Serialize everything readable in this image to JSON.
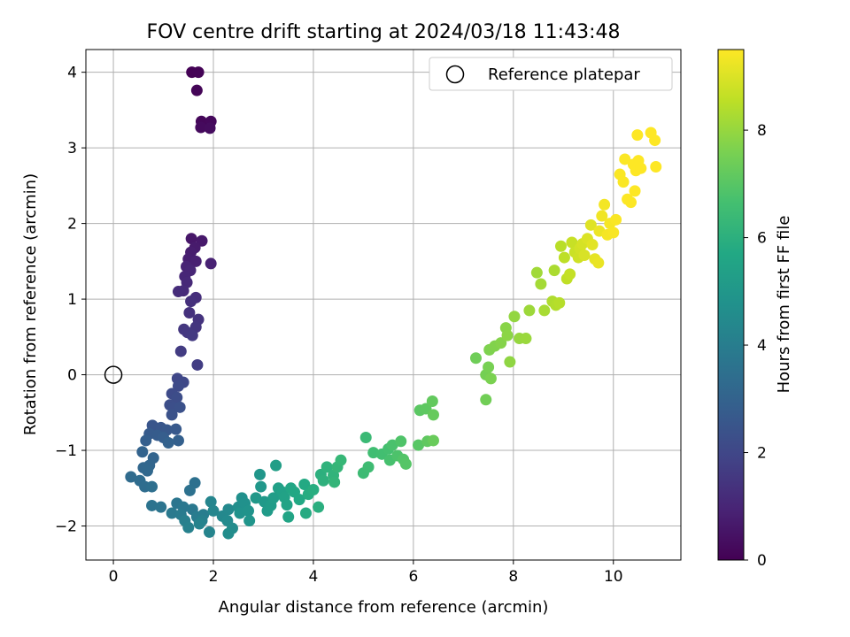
{
  "chart_data": {
    "type": "scatter",
    "title": "FOV centre drift starting at 2024/03/18 11:43:48",
    "xlabel": "Angular distance from reference (arcmin)",
    "ylabel": "Rotation from reference (arcmin)",
    "colorbar_label": "Hours from first FF file",
    "xlim": [
      -0.55,
      11.35
    ],
    "ylim": [
      -2.45,
      4.3
    ],
    "clim": [
      0,
      9.5
    ],
    "colormap": "viridis",
    "grid": true,
    "legend": {
      "position": "top-right",
      "label": "Reference platepar"
    },
    "x_ticks": [
      0,
      2,
      4,
      6,
      8,
      10
    ],
    "y_ticks": [
      -2,
      -1,
      0,
      1,
      2,
      3,
      4
    ],
    "y_tick_labels": [
      "−2",
      "−1",
      "0",
      "1",
      "2",
      "3",
      "4"
    ],
    "colorbar_ticks": [
      0,
      2,
      4,
      6,
      8
    ],
    "reference": {
      "x": 0,
      "y": 0
    },
    "points": [
      [
        1.57,
        4.0,
        0.02
      ],
      [
        1.7,
        4.0,
        0.05
      ],
      [
        1.67,
        3.76,
        0.1
      ],
      [
        1.76,
        3.35,
        0.15
      ],
      [
        1.95,
        3.35,
        0.2
      ],
      [
        1.75,
        3.27,
        0.25
      ],
      [
        1.93,
        3.26,
        0.3
      ],
      [
        1.56,
        1.8,
        0.6
      ],
      [
        1.77,
        1.77,
        0.65
      ],
      [
        1.63,
        1.68,
        0.7
      ],
      [
        1.55,
        1.62,
        0.75
      ],
      [
        1.5,
        1.53,
        0.8
      ],
      [
        1.65,
        1.5,
        0.85
      ],
      [
        1.95,
        1.47,
        0.9
      ],
      [
        1.46,
        1.43,
        0.95
      ],
      [
        1.54,
        1.38,
        1.0
      ],
      [
        1.43,
        1.3,
        1.05
      ],
      [
        1.47,
        1.22,
        1.1
      ],
      [
        1.4,
        1.11,
        1.15
      ],
      [
        1.3,
        1.1,
        1.2
      ],
      [
        1.65,
        1.02,
        1.25
      ],
      [
        1.55,
        0.97,
        1.3
      ],
      [
        1.52,
        0.82,
        1.35
      ],
      [
        1.7,
        0.73,
        1.4
      ],
      [
        1.65,
        0.63,
        1.45
      ],
      [
        1.41,
        0.6,
        1.5
      ],
      [
        1.48,
        0.56,
        1.55
      ],
      [
        1.58,
        0.52,
        1.6
      ],
      [
        1.35,
        0.31,
        1.65
      ],
      [
        1.68,
        0.13,
        1.7
      ],
      [
        1.28,
        -0.05,
        2.0
      ],
      [
        1.4,
        -0.1,
        2.05
      ],
      [
        1.3,
        -0.15,
        2.1
      ],
      [
        1.17,
        -0.25,
        2.15
      ],
      [
        1.27,
        -0.3,
        2.2
      ],
      [
        1.13,
        -0.4,
        2.25
      ],
      [
        1.2,
        -0.43,
        2.3
      ],
      [
        1.33,
        -0.43,
        2.35
      ],
      [
        1.17,
        -0.53,
        2.4
      ],
      [
        0.78,
        -0.67,
        2.5
      ],
      [
        0.95,
        -0.7,
        2.55
      ],
      [
        1.07,
        -0.73,
        2.6
      ],
      [
        1.25,
        -0.72,
        2.65
      ],
      [
        0.72,
        -0.78,
        2.7
      ],
      [
        0.88,
        -0.8,
        2.75
      ],
      [
        1.0,
        -0.83,
        2.8
      ],
      [
        0.65,
        -0.87,
        2.85
      ],
      [
        1.3,
        -0.87,
        2.9
      ],
      [
        1.1,
        -0.9,
        2.95
      ],
      [
        0.58,
        -1.02,
        3.0
      ],
      [
        0.8,
        -1.1,
        3.05
      ],
      [
        0.72,
        -1.2,
        3.1
      ],
      [
        0.6,
        -1.23,
        3.15
      ],
      [
        0.68,
        -1.27,
        3.2
      ],
      [
        0.35,
        -1.35,
        3.3
      ],
      [
        0.53,
        -1.4,
        3.35
      ],
      [
        0.63,
        -1.48,
        3.4
      ],
      [
        0.77,
        -1.48,
        3.45
      ],
      [
        1.63,
        -1.43,
        3.5
      ],
      [
        1.53,
        -1.53,
        3.55
      ],
      [
        0.77,
        -1.73,
        3.6
      ],
      [
        0.95,
        -1.75,
        3.65
      ],
      [
        1.27,
        -1.7,
        3.7
      ],
      [
        1.4,
        -1.75,
        3.75
      ],
      [
        1.58,
        -1.78,
        3.8
      ],
      [
        1.17,
        -1.83,
        3.85
      ],
      [
        1.35,
        -1.85,
        3.9
      ],
      [
        1.67,
        -1.88,
        3.95
      ],
      [
        1.8,
        -1.85,
        4.0
      ],
      [
        1.43,
        -1.93,
        4.05
      ],
      [
        1.77,
        -1.93,
        4.1
      ],
      [
        1.5,
        -2.02,
        4.15
      ],
      [
        1.72,
        -1.97,
        4.2
      ],
      [
        1.92,
        -2.08,
        4.25
      ],
      [
        1.95,
        -1.68,
        4.3
      ],
      [
        2.0,
        -1.8,
        4.35
      ],
      [
        2.18,
        -1.87,
        4.4
      ],
      [
        2.3,
        -1.78,
        4.45
      ],
      [
        2.28,
        -1.93,
        4.5
      ],
      [
        2.38,
        -2.03,
        4.55
      ],
      [
        2.3,
        -2.1,
        4.6
      ],
      [
        2.5,
        -1.75,
        4.65
      ],
      [
        2.57,
        -1.63,
        4.7
      ],
      [
        2.63,
        -1.7,
        4.75
      ],
      [
        2.53,
        -1.83,
        4.8
      ],
      [
        2.7,
        -1.8,
        4.85
      ],
      [
        2.72,
        -1.93,
        4.9
      ],
      [
        2.93,
        -1.32,
        4.95
      ],
      [
        2.95,
        -1.48,
        5.0
      ],
      [
        2.85,
        -1.63,
        5.05
      ],
      [
        3.02,
        -1.68,
        5.1
      ],
      [
        3.08,
        -1.8,
        5.15
      ],
      [
        3.15,
        -1.73,
        5.2
      ],
      [
        3.2,
        -1.63,
        5.25
      ],
      [
        3.25,
        -1.2,
        5.3
      ],
      [
        3.3,
        -1.5,
        5.35
      ],
      [
        3.38,
        -1.55,
        5.4
      ],
      [
        3.42,
        -1.62,
        5.45
      ],
      [
        3.47,
        -1.72,
        5.5
      ],
      [
        3.5,
        -1.88,
        5.55
      ],
      [
        3.55,
        -1.5,
        5.6
      ],
      [
        3.62,
        -1.55,
        5.65
      ],
      [
        3.72,
        -1.65,
        5.7
      ],
      [
        3.82,
        -1.45,
        5.75
      ],
      [
        3.85,
        -1.83,
        5.8
      ],
      [
        3.9,
        -1.58,
        5.85
      ],
      [
        4.0,
        -1.52,
        5.9
      ],
      [
        4.1,
        -1.75,
        5.95
      ],
      [
        4.15,
        -1.32,
        6.0
      ],
      [
        4.2,
        -1.4,
        6.05
      ],
      [
        4.27,
        -1.22,
        6.1
      ],
      [
        4.4,
        -1.33,
        6.15
      ],
      [
        4.42,
        -1.42,
        6.2
      ],
      [
        4.48,
        -1.22,
        6.25
      ],
      [
        4.55,
        -1.13,
        6.3
      ],
      [
        5.05,
        -0.83,
        6.4
      ],
      [
        5.0,
        -1.3,
        6.45
      ],
      [
        5.1,
        -1.22,
        6.5
      ],
      [
        5.2,
        -1.03,
        6.55
      ],
      [
        5.37,
        -1.05,
        6.6
      ],
      [
        5.5,
        -0.98,
        6.65
      ],
      [
        5.53,
        -1.13,
        6.7
      ],
      [
        5.58,
        -0.93,
        6.75
      ],
      [
        5.68,
        -1.07,
        6.8
      ],
      [
        5.75,
        -0.88,
        6.85
      ],
      [
        5.8,
        -1.12,
        6.9
      ],
      [
        5.85,
        -1.18,
        6.95
      ],
      [
        6.1,
        -0.93,
        7.0
      ],
      [
        6.13,
        -0.47,
        7.05
      ],
      [
        6.25,
        -0.45,
        7.1
      ],
      [
        6.28,
        -0.88,
        7.15
      ],
      [
        6.38,
        -0.35,
        7.2
      ],
      [
        6.4,
        -0.53,
        7.25
      ],
      [
        6.4,
        -0.87,
        7.3
      ],
      [
        7.25,
        0.22,
        7.4
      ],
      [
        7.45,
        -0.33,
        7.45
      ],
      [
        7.45,
        0.0,
        7.5
      ],
      [
        7.5,
        0.1,
        7.55
      ],
      [
        7.55,
        -0.05,
        7.6
      ],
      [
        7.52,
        0.33,
        7.65
      ],
      [
        7.63,
        0.38,
        7.7
      ],
      [
        7.75,
        0.42,
        7.75
      ],
      [
        7.85,
        0.62,
        7.8
      ],
      [
        7.88,
        0.52,
        7.85
      ],
      [
        7.93,
        0.17,
        7.9
      ],
      [
        8.02,
        0.77,
        7.95
      ],
      [
        8.12,
        0.48,
        8.0
      ],
      [
        8.25,
        0.48,
        8.05
      ],
      [
        8.32,
        0.85,
        8.1
      ],
      [
        8.47,
        1.35,
        8.15
      ],
      [
        8.55,
        1.2,
        8.2
      ],
      [
        8.62,
        0.85,
        8.25
      ],
      [
        8.82,
        1.38,
        8.3
      ],
      [
        8.78,
        0.97,
        8.35
      ],
      [
        8.85,
        0.92,
        8.4
      ],
      [
        8.92,
        0.95,
        8.45
      ],
      [
        8.95,
        1.7,
        8.5
      ],
      [
        9.02,
        1.55,
        8.55
      ],
      [
        9.07,
        1.27,
        8.6
      ],
      [
        9.13,
        1.33,
        8.65
      ],
      [
        9.17,
        1.75,
        8.7
      ],
      [
        9.23,
        1.62,
        8.75
      ],
      [
        9.3,
        1.55,
        8.8
      ],
      [
        9.33,
        1.67,
        8.85
      ],
      [
        9.38,
        1.73,
        8.9
      ],
      [
        9.42,
        1.58,
        8.95
      ],
      [
        9.48,
        1.8,
        9.0
      ],
      [
        9.55,
        1.98,
        9.05
      ],
      [
        9.58,
        1.72,
        9.1
      ],
      [
        9.63,
        1.53,
        9.15
      ],
      [
        9.7,
        1.48,
        9.2
      ],
      [
        9.72,
        1.9,
        9.25
      ],
      [
        9.77,
        2.1,
        9.3
      ],
      [
        9.82,
        2.25,
        9.35
      ],
      [
        9.88,
        1.85,
        9.38
      ],
      [
        9.93,
        2.0,
        9.4
      ],
      [
        10.0,
        1.88,
        9.42
      ],
      [
        10.05,
        2.05,
        9.44
      ],
      [
        10.13,
        2.65,
        9.45
      ],
      [
        10.2,
        2.55,
        9.46
      ],
      [
        10.23,
        2.85,
        9.47
      ],
      [
        10.28,
        2.32,
        9.48
      ],
      [
        10.35,
        2.28,
        9.49
      ],
      [
        10.4,
        2.78,
        9.5
      ],
      [
        10.43,
        2.43,
        9.5
      ],
      [
        10.45,
        2.7,
        9.5
      ],
      [
        10.48,
        3.17,
        9.5
      ],
      [
        10.5,
        2.83,
        9.5
      ],
      [
        10.55,
        2.73,
        9.5
      ],
      [
        10.75,
        3.2,
        9.5
      ],
      [
        10.83,
        3.1,
        9.5
      ],
      [
        10.85,
        2.75,
        9.5
      ]
    ]
  }
}
